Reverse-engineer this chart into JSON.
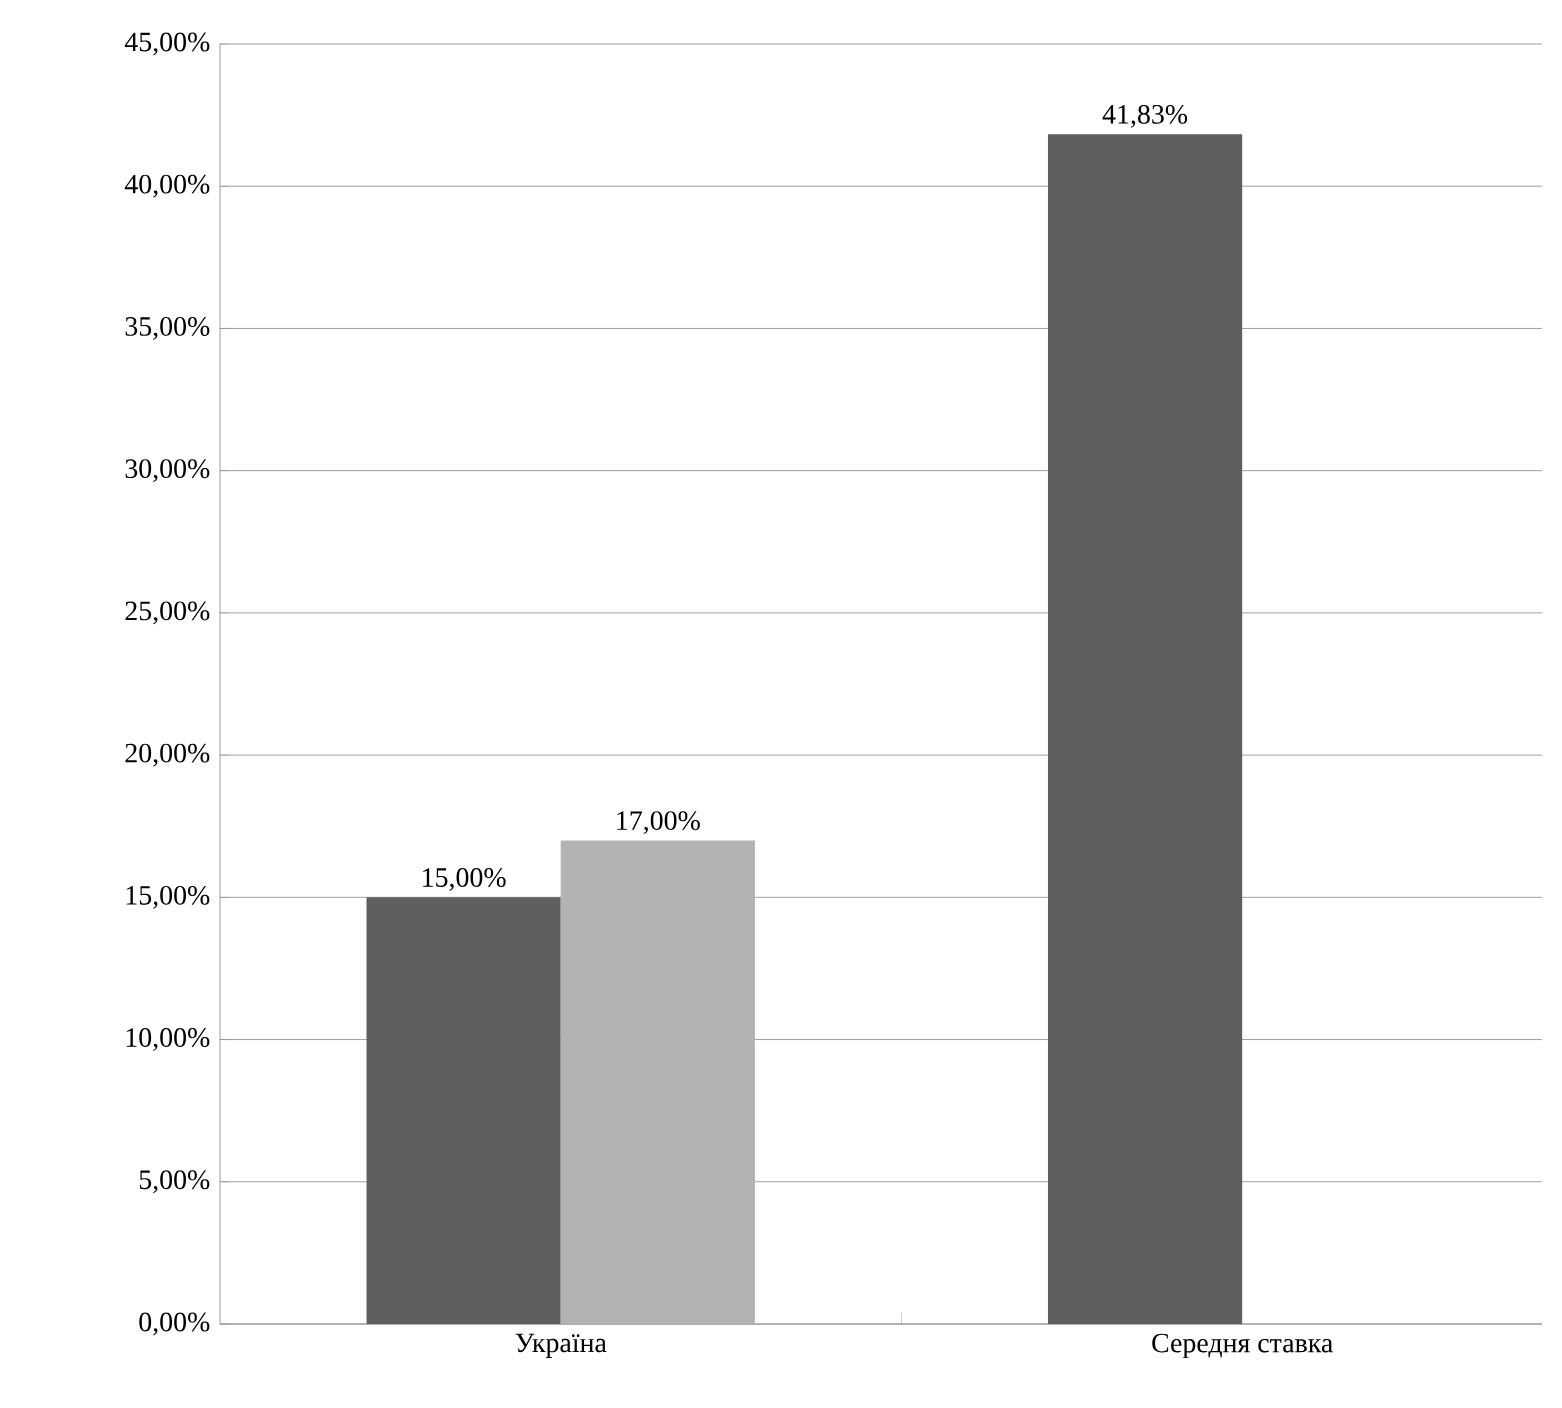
{
  "chart_data": {
    "type": "bar",
    "categories": [
      "Україна",
      "Середня ставка"
    ],
    "series": [
      {
        "color": "#5f5f5f",
        "values": [
          15,
          41.83
        ],
        "value_labels": [
          "15,00%",
          "41,83%"
        ]
      },
      {
        "color": "#b3b3b3",
        "values": [
          17,
          null
        ],
        "value_labels": [
          "17,00%",
          null
        ]
      }
    ],
    "ylim": [
      0,
      45
    ],
    "yticks": [
      {
        "value": 0,
        "label": "0,00%"
      },
      {
        "value": 5,
        "label": "5,00%"
      },
      {
        "value": 10,
        "label": "10,00%"
      },
      {
        "value": 15,
        "label": "15,00%"
      },
      {
        "value": 20,
        "label": "20,00%"
      },
      {
        "value": 25,
        "label": "25,00%"
      },
      {
        "value": 30,
        "label": "30,00%"
      },
      {
        "value": 35,
        "label": "35,00%"
      },
      {
        "value": 40,
        "label": "40,00%"
      },
      {
        "value": 45,
        "label": "45,00%"
      }
    ],
    "grid": "y"
  }
}
